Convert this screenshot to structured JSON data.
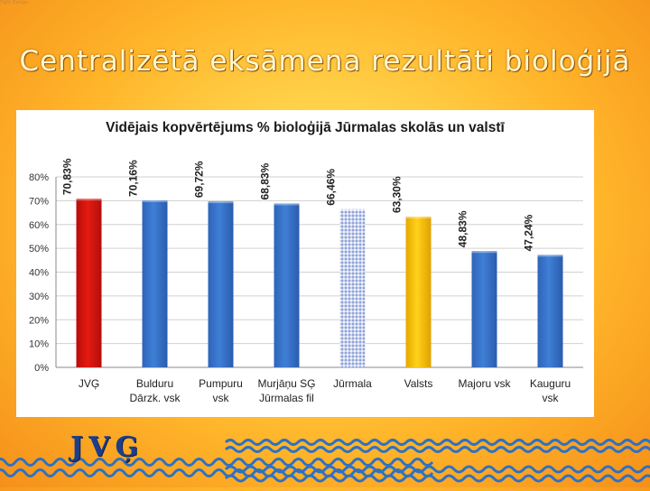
{
  "slide": {
    "title": "Centralizētā eksāmena rezultāti bioloģijā",
    "brand": "Fight Design",
    "logo": "JVĢ"
  },
  "colors": {
    "bar_default": "#3f7fd6",
    "bar_jvg": "#e41a12",
    "bar_jurmala": "#c9d3ee",
    "bar_valsts": "#ffd21a",
    "wave": "#2f71c2"
  },
  "chart_data": {
    "type": "bar",
    "title": "Vidējais kopvērtējums % bioloģijā Jūrmalas skolās un valstī",
    "categories": [
      [
        "JVĢ"
      ],
      [
        "Bulduru",
        "Dārzk. vsk"
      ],
      [
        "Pumpuru",
        "vsk"
      ],
      [
        "Murjāņu SĢ",
        "Jūrmalas fil"
      ],
      [
        "Jūrmala"
      ],
      [
        "Valsts"
      ],
      [
        "Majoru vsk"
      ],
      [
        "Kauguru",
        "vsk"
      ]
    ],
    "values": [
      70.83,
      70.16,
      69.72,
      68.83,
      66.46,
      63.3,
      48.83,
      47.24
    ],
    "data_labels": [
      "70,83%",
      "70,16%",
      "69,72%",
      "68,83%",
      "66,46%",
      "63,30%",
      "48,83%",
      "47,24%"
    ],
    "y_ticks": [
      "0%",
      "10%",
      "20%",
      "30%",
      "40%",
      "50%",
      "60%",
      "70%",
      "80%"
    ],
    "ylim": [
      0,
      80
    ],
    "grid": true,
    "xlabel": "",
    "ylabel": ""
  }
}
